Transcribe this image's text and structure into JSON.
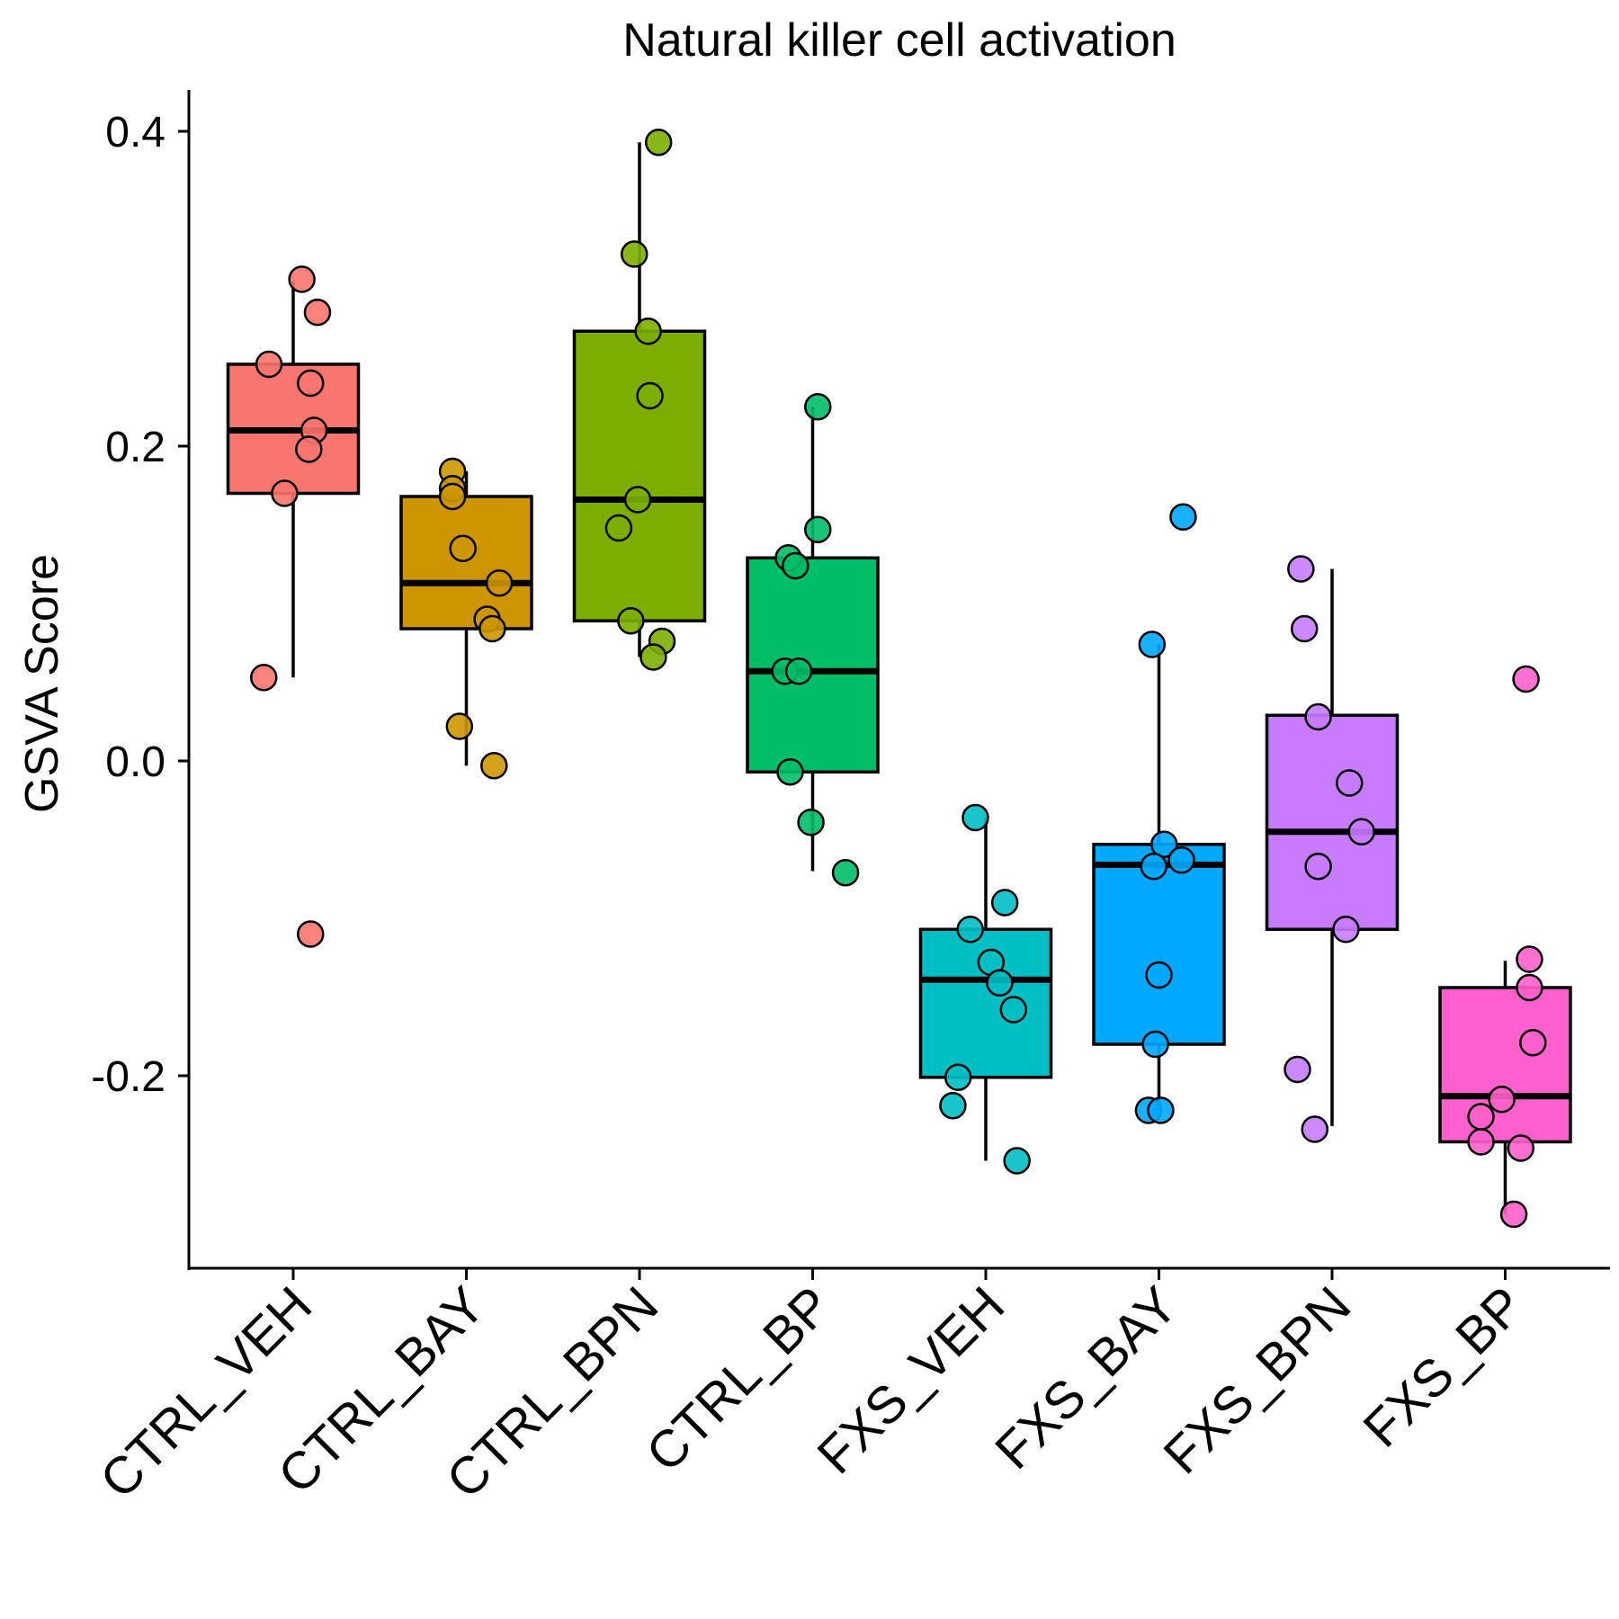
{
  "chart_data": {
    "type": "box",
    "title": "Natural killer cell activation",
    "ylabel": "GSVA Score",
    "xlabel": "",
    "ylim": [
      -0.32,
      0.43
    ],
    "yticks": [
      0.4,
      0.2,
      0.0,
      -0.2
    ],
    "ytick_labels": [
      "0.4",
      "0.2",
      "0.0",
      "-0.2"
    ],
    "grid": false,
    "legend": "none",
    "categories": [
      "CTRL_VEH",
      "CTRL_BAY",
      "CTRL_BPN",
      "CTRL_BP",
      "FXS_VEH",
      "FXS_BAY",
      "FXS_BPN",
      "FXS_BP"
    ],
    "colors": [
      "#F8766D",
      "#CD9600",
      "#7CAE00",
      "#00BE67",
      "#00BFC4",
      "#00A9FF",
      "#C77CFF",
      "#FF61CC"
    ],
    "boxes": [
      {
        "q1": 0.17,
        "median": 0.21,
        "q3": 0.252,
        "whisker_low": 0.053,
        "whisker_high": 0.305
      },
      {
        "q1": 0.084,
        "median": 0.113,
        "q3": 0.168,
        "whisker_low": -0.003,
        "whisker_high": 0.184
      },
      {
        "q1": 0.089,
        "median": 0.166,
        "q3": 0.273,
        "whisker_low": 0.066,
        "whisker_high": 0.393
      },
      {
        "q1": -0.007,
        "median": 0.057,
        "q3": 0.129,
        "whisker_low": -0.07,
        "whisker_high": 0.225
      },
      {
        "q1": -0.201,
        "median": -0.139,
        "q3": -0.107,
        "whisker_low": -0.254,
        "whisker_high": -0.036
      },
      {
        "q1": -0.18,
        "median": -0.066,
        "q3": -0.053,
        "whisker_low": -0.222,
        "whisker_high": 0.074
      },
      {
        "q1": -0.107,
        "median": -0.045,
        "q3": 0.029,
        "whisker_low": -0.232,
        "whisker_high": 0.122
      },
      {
        "q1": -0.242,
        "median": -0.213,
        "q3": -0.144,
        "whisker_low": -0.288,
        "whisker_high": -0.127
      }
    ],
    "points": [
      [
        {
          "x": 0.05,
          "y": 0.306
        },
        {
          "x": 0.14,
          "y": 0.285
        },
        {
          "x": -0.14,
          "y": 0.252
        },
        {
          "x": 0.1,
          "y": 0.24
        },
        {
          "x": 0.12,
          "y": 0.21
        },
        {
          "x": 0.09,
          "y": 0.198
        },
        {
          "x": -0.05,
          "y": 0.17
        },
        {
          "x": -0.17,
          "y": 0.053
        },
        {
          "x": 0.1,
          "y": -0.11
        }
      ],
      [
        {
          "x": -0.08,
          "y": 0.184
        },
        {
          "x": -0.08,
          "y": 0.173
        },
        {
          "x": -0.08,
          "y": 0.168
        },
        {
          "x": -0.02,
          "y": 0.135
        },
        {
          "x": 0.19,
          "y": 0.113
        },
        {
          "x": 0.12,
          "y": 0.09
        },
        {
          "x": 0.15,
          "y": 0.084
        },
        {
          "x": -0.04,
          "y": 0.022
        },
        {
          "x": 0.16,
          "y": -0.003
        }
      ],
      [
        {
          "x": 0.11,
          "y": 0.393
        },
        {
          "x": -0.03,
          "y": 0.322
        },
        {
          "x": 0.05,
          "y": 0.273
        },
        {
          "x": 0.06,
          "y": 0.232
        },
        {
          "x": -0.01,
          "y": 0.166
        },
        {
          "x": -0.12,
          "y": 0.148
        },
        {
          "x": -0.05,
          "y": 0.089
        },
        {
          "x": 0.13,
          "y": 0.076
        },
        {
          "x": 0.08,
          "y": 0.066
        }
      ],
      [
        {
          "x": 0.03,
          "y": 0.225
        },
        {
          "x": 0.03,
          "y": 0.147
        },
        {
          "x": -0.14,
          "y": 0.129
        },
        {
          "x": -0.1,
          "y": 0.124
        },
        {
          "x": -0.16,
          "y": 0.057
        },
        {
          "x": -0.08,
          "y": 0.057
        },
        {
          "x": -0.13,
          "y": -0.007
        },
        {
          "x": -0.01,
          "y": -0.039
        },
        {
          "x": 0.19,
          "y": -0.071
        }
      ],
      [
        {
          "x": -0.06,
          "y": -0.036
        },
        {
          "x": 0.11,
          "y": -0.09
        },
        {
          "x": -0.09,
          "y": -0.107
        },
        {
          "x": 0.03,
          "y": -0.128
        },
        {
          "x": 0.08,
          "y": -0.141
        },
        {
          "x": 0.16,
          "y": -0.158
        },
        {
          "x": -0.16,
          "y": -0.201
        },
        {
          "x": -0.19,
          "y": -0.219
        },
        {
          "x": 0.18,
          "y": -0.254
        }
      ],
      [
        {
          "x": 0.14,
          "y": 0.155
        },
        {
          "x": -0.04,
          "y": 0.074
        },
        {
          "x": 0.03,
          "y": -0.053
        },
        {
          "x": -0.03,
          "y": -0.067
        },
        {
          "x": 0.13,
          "y": -0.063
        },
        {
          "x": 0.0,
          "y": -0.136
        },
        {
          "x": -0.02,
          "y": -0.18
        },
        {
          "x": -0.06,
          "y": -0.222
        },
        {
          "x": 0.01,
          "y": -0.222
        }
      ],
      [
        {
          "x": -0.18,
          "y": 0.122
        },
        {
          "x": -0.16,
          "y": 0.084
        },
        {
          "x": -0.08,
          "y": 0.028
        },
        {
          "x": 0.1,
          "y": -0.014
        },
        {
          "x": 0.17,
          "y": -0.045
        },
        {
          "x": -0.08,
          "y": -0.067
        },
        {
          "x": 0.08,
          "y": -0.107
        },
        {
          "x": -0.2,
          "y": -0.196
        },
        {
          "x": -0.1,
          "y": -0.234
        }
      ],
      [
        {
          "x": 0.12,
          "y": 0.052
        },
        {
          "x": 0.14,
          "y": -0.126
        },
        {
          "x": 0.14,
          "y": -0.144
        },
        {
          "x": 0.16,
          "y": -0.179
        },
        {
          "x": -0.02,
          "y": -0.215
        },
        {
          "x": -0.14,
          "y": -0.226
        },
        {
          "x": -0.14,
          "y": -0.242
        },
        {
          "x": 0.09,
          "y": -0.246
        },
        {
          "x": 0.05,
          "y": -0.288
        }
      ]
    ]
  }
}
